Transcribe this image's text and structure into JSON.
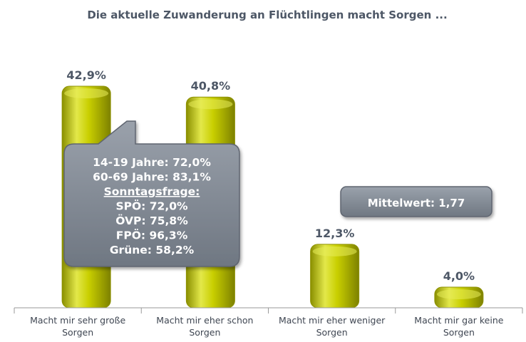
{
  "chart_data": {
    "type": "bar",
    "title": "Die aktuelle Zuwanderung an Flüchtlingen macht Sorgen ...",
    "categories": [
      [
        "Macht mir sehr große",
        "Sorgen"
      ],
      [
        "Macht mir eher schon",
        "Sorgen"
      ],
      [
        "Macht mir eher weniger",
        "Sorgen"
      ],
      [
        "Macht mir gar keine",
        "Sorgen"
      ]
    ],
    "values": [
      42.9,
      40.8,
      12.3,
      4.0
    ],
    "value_labels": [
      "42,9%",
      "40,8%",
      "12,3%",
      "4,0%"
    ],
    "ylim": [
      0,
      45
    ],
    "grid": false,
    "legend": "none",
    "bar_color": "#c6cc00",
    "annotations": {
      "callout": [
        "14-19 Jahre: 72,0%",
        "60-69 Jahre: 83,1%",
        "Sonntagsfrage:",
        "SPÖ: 72,0%",
        "ÖVP: 75,8%",
        "FPÖ: 96,3%",
        "Grüne: 58,2%"
      ],
      "mean": "Mittelwert: 1,77"
    }
  }
}
